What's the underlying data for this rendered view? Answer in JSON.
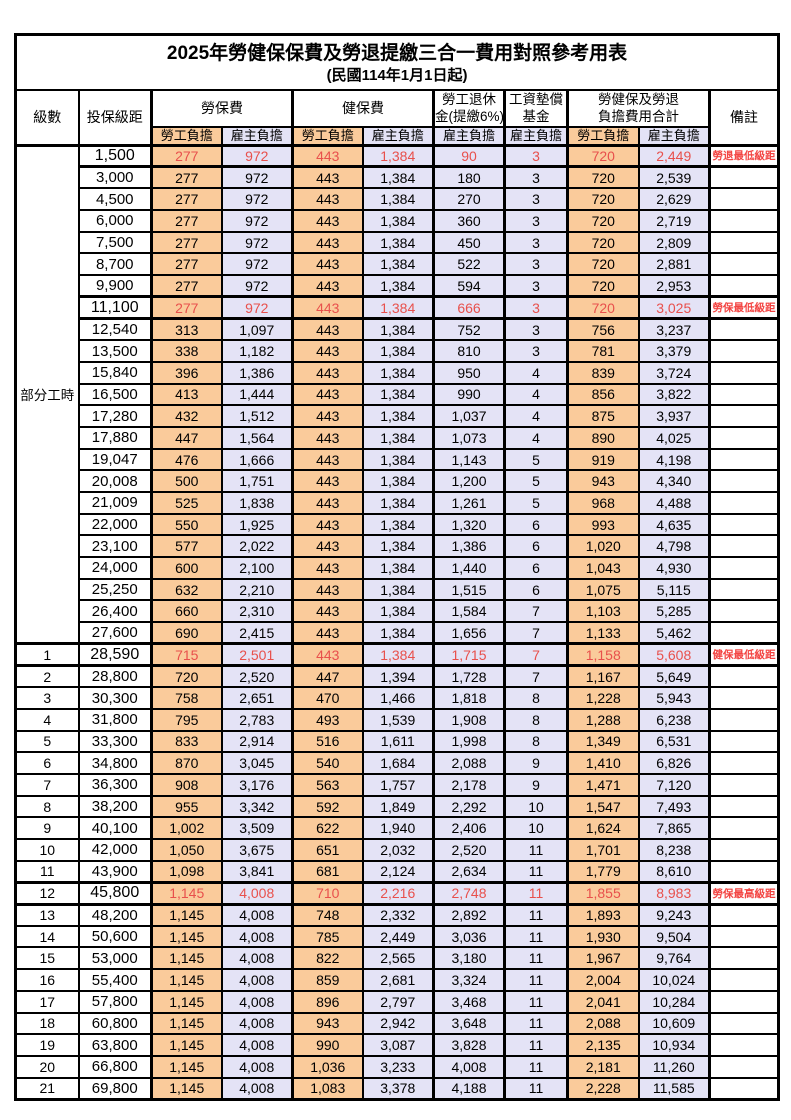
{
  "title": "2025年勞健保保費及勞退提繳三合一費用對照參考用表",
  "subtitle": "(民國114年1月1日起)",
  "header": {
    "level": "級數",
    "bracket": "投保級距",
    "labor_insurance": "勞保費",
    "health_insurance": "健保費",
    "pension": [
      "勞工退休",
      "金(提繳6%)"
    ],
    "wage_fund": [
      "工資墊償",
      "基金"
    ],
    "total": [
      "勞健保及勞退",
      "負擔費用合計"
    ],
    "remark": "備註",
    "employee_burden": "勞工負擔",
    "employer_burden": "雇主負擔"
  },
  "colors": {
    "employee_bg": "#FACB9B",
    "employer_bg": "#E4E3F6",
    "data_red": "#E8504C",
    "remark_red": "#F34442"
  },
  "part_time_label": "部分工時",
  "rows": [
    {
      "group": "部分工時",
      "group_span": 23,
      "bracket": "1,500",
      "li_emp": "277",
      "li_er": "972",
      "hi_emp": "443",
      "hi_er": "1,384",
      "pension": "90",
      "fund": "3",
      "tot_emp": "720",
      "tot_er": "2,449",
      "remark": "勞退最低級距",
      "red": true
    },
    {
      "bracket": "3,000",
      "li_emp": "277",
      "li_er": "972",
      "hi_emp": "443",
      "hi_er": "1,384",
      "pension": "180",
      "fund": "3",
      "tot_emp": "720",
      "tot_er": "2,539"
    },
    {
      "bracket": "4,500",
      "li_emp": "277",
      "li_er": "972",
      "hi_emp": "443",
      "hi_er": "1,384",
      "pension": "270",
      "fund": "3",
      "tot_emp": "720",
      "tot_er": "2,629"
    },
    {
      "bracket": "6,000",
      "li_emp": "277",
      "li_er": "972",
      "hi_emp": "443",
      "hi_er": "1,384",
      "pension": "360",
      "fund": "3",
      "tot_emp": "720",
      "tot_er": "2,719"
    },
    {
      "bracket": "7,500",
      "li_emp": "277",
      "li_er": "972",
      "hi_emp": "443",
      "hi_er": "1,384",
      "pension": "450",
      "fund": "3",
      "tot_emp": "720",
      "tot_er": "2,809"
    },
    {
      "bracket": "8,700",
      "li_emp": "277",
      "li_er": "972",
      "hi_emp": "443",
      "hi_er": "1,384",
      "pension": "522",
      "fund": "3",
      "tot_emp": "720",
      "tot_er": "2,881"
    },
    {
      "bracket": "9,900",
      "li_emp": "277",
      "li_er": "972",
      "hi_emp": "443",
      "hi_er": "1,384",
      "pension": "594",
      "fund": "3",
      "tot_emp": "720",
      "tot_er": "2,953"
    },
    {
      "bracket": "11,100",
      "li_emp": "277",
      "li_er": "972",
      "hi_emp": "443",
      "hi_er": "1,384",
      "pension": "666",
      "fund": "3",
      "tot_emp": "720",
      "tot_er": "3,025",
      "remark": "勞保最低級距",
      "red": true
    },
    {
      "bracket": "12,540",
      "li_emp": "313",
      "li_er": "1,097",
      "hi_emp": "443",
      "hi_er": "1,384",
      "pension": "752",
      "fund": "3",
      "tot_emp": "756",
      "tot_er": "3,237"
    },
    {
      "bracket": "13,500",
      "li_emp": "338",
      "li_er": "1,182",
      "hi_emp": "443",
      "hi_er": "1,384",
      "pension": "810",
      "fund": "3",
      "tot_emp": "781",
      "tot_er": "3,379"
    },
    {
      "bracket": "15,840",
      "li_emp": "396",
      "li_er": "1,386",
      "hi_emp": "443",
      "hi_er": "1,384",
      "pension": "950",
      "fund": "4",
      "tot_emp": "839",
      "tot_er": "3,724"
    },
    {
      "bracket": "16,500",
      "li_emp": "413",
      "li_er": "1,444",
      "hi_emp": "443",
      "hi_er": "1,384",
      "pension": "990",
      "fund": "4",
      "tot_emp": "856",
      "tot_er": "3,822"
    },
    {
      "bracket": "17,280",
      "li_emp": "432",
      "li_er": "1,512",
      "hi_emp": "443",
      "hi_er": "1,384",
      "pension": "1,037",
      "fund": "4",
      "tot_emp": "875",
      "tot_er": "3,937"
    },
    {
      "bracket": "17,880",
      "li_emp": "447",
      "li_er": "1,564",
      "hi_emp": "443",
      "hi_er": "1,384",
      "pension": "1,073",
      "fund": "4",
      "tot_emp": "890",
      "tot_er": "4,025"
    },
    {
      "bracket": "19,047",
      "li_emp": "476",
      "li_er": "1,666",
      "hi_emp": "443",
      "hi_er": "1,384",
      "pension": "1,143",
      "fund": "5",
      "tot_emp": "919",
      "tot_er": "4,198"
    },
    {
      "bracket": "20,008",
      "li_emp": "500",
      "li_er": "1,751",
      "hi_emp": "443",
      "hi_er": "1,384",
      "pension": "1,200",
      "fund": "5",
      "tot_emp": "943",
      "tot_er": "4,340"
    },
    {
      "bracket": "21,009",
      "li_emp": "525",
      "li_er": "1,838",
      "hi_emp": "443",
      "hi_er": "1,384",
      "pension": "1,261",
      "fund": "5",
      "tot_emp": "968",
      "tot_er": "4,488"
    },
    {
      "bracket": "22,000",
      "li_emp": "550",
      "li_er": "1,925",
      "hi_emp": "443",
      "hi_er": "1,384",
      "pension": "1,320",
      "fund": "6",
      "tot_emp": "993",
      "tot_er": "4,635"
    },
    {
      "bracket": "23,100",
      "li_emp": "577",
      "li_er": "2,022",
      "hi_emp": "443",
      "hi_er": "1,384",
      "pension": "1,386",
      "fund": "6",
      "tot_emp": "1,020",
      "tot_er": "4,798"
    },
    {
      "bracket": "24,000",
      "li_emp": "600",
      "li_er": "2,100",
      "hi_emp": "443",
      "hi_er": "1,384",
      "pension": "1,440",
      "fund": "6",
      "tot_emp": "1,043",
      "tot_er": "4,930"
    },
    {
      "bracket": "25,250",
      "li_emp": "632",
      "li_er": "2,210",
      "hi_emp": "443",
      "hi_er": "1,384",
      "pension": "1,515",
      "fund": "6",
      "tot_emp": "1,075",
      "tot_er": "5,115"
    },
    {
      "bracket": "26,400",
      "li_emp": "660",
      "li_er": "2,310",
      "hi_emp": "443",
      "hi_er": "1,384",
      "pension": "1,584",
      "fund": "7",
      "tot_emp": "1,103",
      "tot_er": "5,285"
    },
    {
      "bracket": "27,600",
      "li_emp": "690",
      "li_er": "2,415",
      "hi_emp": "443",
      "hi_er": "1,384",
      "pension": "1,656",
      "fund": "7",
      "tot_emp": "1,133",
      "tot_er": "5,462"
    },
    {
      "level": "1",
      "bracket": "28,590",
      "li_emp": "715",
      "li_er": "2,501",
      "hi_emp": "443",
      "hi_er": "1,384",
      "pension": "1,715",
      "fund": "7",
      "tot_emp": "1,158",
      "tot_er": "5,608",
      "remark": "健保最低級距",
      "red": true
    },
    {
      "level": "2",
      "bracket": "28,800",
      "li_emp": "720",
      "li_er": "2,520",
      "hi_emp": "447",
      "hi_er": "1,394",
      "pension": "1,728",
      "fund": "7",
      "tot_emp": "1,167",
      "tot_er": "5,649"
    },
    {
      "level": "3",
      "bracket": "30,300",
      "li_emp": "758",
      "li_er": "2,651",
      "hi_emp": "470",
      "hi_er": "1,466",
      "pension": "1,818",
      "fund": "8",
      "tot_emp": "1,228",
      "tot_er": "5,943"
    },
    {
      "level": "4",
      "bracket": "31,800",
      "li_emp": "795",
      "li_er": "2,783",
      "hi_emp": "493",
      "hi_er": "1,539",
      "pension": "1,908",
      "fund": "8",
      "tot_emp": "1,288",
      "tot_er": "6,238"
    },
    {
      "level": "5",
      "bracket": "33,300",
      "li_emp": "833",
      "li_er": "2,914",
      "hi_emp": "516",
      "hi_er": "1,611",
      "pension": "1,998",
      "fund": "8",
      "tot_emp": "1,349",
      "tot_er": "6,531"
    },
    {
      "level": "6",
      "bracket": "34,800",
      "li_emp": "870",
      "li_er": "3,045",
      "hi_emp": "540",
      "hi_er": "1,684",
      "pension": "2,088",
      "fund": "9",
      "tot_emp": "1,410",
      "tot_er": "6,826"
    },
    {
      "level": "7",
      "bracket": "36,300",
      "li_emp": "908",
      "li_er": "3,176",
      "hi_emp": "563",
      "hi_er": "1,757",
      "pension": "2,178",
      "fund": "9",
      "tot_emp": "1,471",
      "tot_er": "7,120"
    },
    {
      "level": "8",
      "bracket": "38,200",
      "li_emp": "955",
      "li_er": "3,342",
      "hi_emp": "592",
      "hi_er": "1,849",
      "pension": "2,292",
      "fund": "10",
      "tot_emp": "1,547",
      "tot_er": "7,493"
    },
    {
      "level": "9",
      "bracket": "40,100",
      "li_emp": "1,002",
      "li_er": "3,509",
      "hi_emp": "622",
      "hi_er": "1,940",
      "pension": "2,406",
      "fund": "10",
      "tot_emp": "1,624",
      "tot_er": "7,865"
    },
    {
      "level": "10",
      "bracket": "42,000",
      "li_emp": "1,050",
      "li_er": "3,675",
      "hi_emp": "651",
      "hi_er": "2,032",
      "pension": "2,520",
      "fund": "11",
      "tot_emp": "1,701",
      "tot_er": "8,238"
    },
    {
      "level": "11",
      "bracket": "43,900",
      "li_emp": "1,098",
      "li_er": "3,841",
      "hi_emp": "681",
      "hi_er": "2,124",
      "pension": "2,634",
      "fund": "11",
      "tot_emp": "1,779",
      "tot_er": "8,610"
    },
    {
      "level": "12",
      "bracket": "45,800",
      "li_emp": "1,145",
      "li_er": "4,008",
      "hi_emp": "710",
      "hi_er": "2,216",
      "pension": "2,748",
      "fund": "11",
      "tot_emp": "1,855",
      "tot_er": "8,983",
      "remark": "勞保最高級距",
      "red": true
    },
    {
      "level": "13",
      "bracket": "48,200",
      "li_emp": "1,145",
      "li_er": "4,008",
      "hi_emp": "748",
      "hi_er": "2,332",
      "pension": "2,892",
      "fund": "11",
      "tot_emp": "1,893",
      "tot_er": "9,243"
    },
    {
      "level": "14",
      "bracket": "50,600",
      "li_emp": "1,145",
      "li_er": "4,008",
      "hi_emp": "785",
      "hi_er": "2,449",
      "pension": "3,036",
      "fund": "11",
      "tot_emp": "1,930",
      "tot_er": "9,504"
    },
    {
      "level": "15",
      "bracket": "53,000",
      "li_emp": "1,145",
      "li_er": "4,008",
      "hi_emp": "822",
      "hi_er": "2,565",
      "pension": "3,180",
      "fund": "11",
      "tot_emp": "1,967",
      "tot_er": "9,764"
    },
    {
      "level": "16",
      "bracket": "55,400",
      "li_emp": "1,145",
      "li_er": "4,008",
      "hi_emp": "859",
      "hi_er": "2,681",
      "pension": "3,324",
      "fund": "11",
      "tot_emp": "2,004",
      "tot_er": "10,024"
    },
    {
      "level": "17",
      "bracket": "57,800",
      "li_emp": "1,145",
      "li_er": "4,008",
      "hi_emp": "896",
      "hi_er": "2,797",
      "pension": "3,468",
      "fund": "11",
      "tot_emp": "2,041",
      "tot_er": "10,284"
    },
    {
      "level": "18",
      "bracket": "60,800",
      "li_emp": "1,145",
      "li_er": "4,008",
      "hi_emp": "943",
      "hi_er": "2,942",
      "pension": "3,648",
      "fund": "11",
      "tot_emp": "2,088",
      "tot_er": "10,609"
    },
    {
      "level": "19",
      "bracket": "63,800",
      "li_emp": "1,145",
      "li_er": "4,008",
      "hi_emp": "990",
      "hi_er": "3,087",
      "pension": "3,828",
      "fund": "11",
      "tot_emp": "2,135",
      "tot_er": "10,934"
    },
    {
      "level": "20",
      "bracket": "66,800",
      "li_emp": "1,145",
      "li_er": "4,008",
      "hi_emp": "1,036",
      "hi_er": "3,233",
      "pension": "4,008",
      "fund": "11",
      "tot_emp": "2,181",
      "tot_er": "11,260"
    },
    {
      "level": "21",
      "bracket": "69,800",
      "li_emp": "1,145",
      "li_er": "4,008",
      "hi_emp": "1,083",
      "hi_er": "3,378",
      "pension": "4,188",
      "fund": "11",
      "tot_emp": "2,228",
      "tot_er": "11,585"
    }
  ]
}
